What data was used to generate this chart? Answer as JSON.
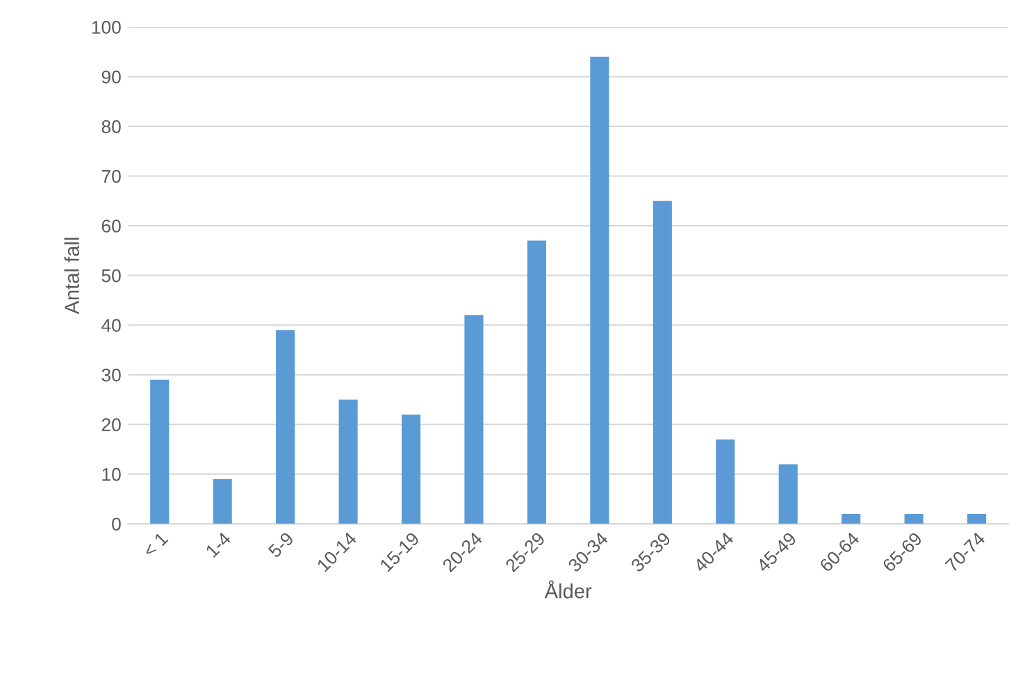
{
  "chart_data": {
    "type": "bar",
    "xlabel": "Ålder",
    "ylabel": "Antal fall",
    "categories": [
      "< 1",
      "1-4",
      "5-9",
      "10-14",
      "15-19",
      "20-24",
      "25-29",
      "30-34",
      "35-39",
      "40-44",
      "45-49",
      "60-64",
      "65-69",
      "70-74"
    ],
    "values": [
      29,
      9,
      39,
      25,
      22,
      42,
      57,
      94,
      65,
      17,
      12,
      2,
      2,
      2
    ],
    "color": "#5b9bd5",
    "ylim": [
      0,
      100
    ],
    "yticks": [
      0,
      10,
      20,
      30,
      40,
      50,
      60,
      70,
      80,
      90,
      100
    ],
    "grid": "y"
  }
}
